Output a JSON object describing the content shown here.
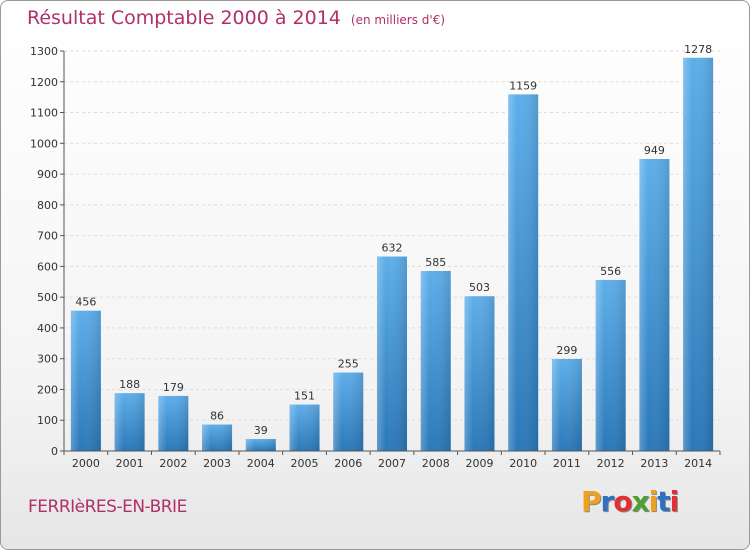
{
  "header": {
    "title": "Résultat Comptable 2000 à 2014",
    "subtitle": "(en milliers d'€)"
  },
  "footer": {
    "town": "FERRIèRES-EN-BRIE"
  },
  "logo": {
    "text": "Proxiti",
    "letters": [
      "P",
      "r",
      "o",
      "x",
      "i",
      "t",
      "i"
    ],
    "colors": [
      "#f0a020",
      "#3070c0",
      "#e03030",
      "#50a030",
      "#f0a020",
      "#3070c0",
      "#e03030"
    ]
  },
  "colors": {
    "bar_light": "#5aaae6",
    "bar_dark": "#2a78b8",
    "title": "#b0306a",
    "grid": "#dddddd",
    "axis": "#555555"
  },
  "chart_data": {
    "type": "bar",
    "title": "Résultat Comptable 2000 à 2014",
    "subtitle": "(en milliers d'€)",
    "categories": [
      "2000",
      "2001",
      "2002",
      "2003",
      "2004",
      "2005",
      "2006",
      "2007",
      "2008",
      "2009",
      "2010",
      "2011",
      "2012",
      "2013",
      "2014"
    ],
    "values": [
      456,
      188,
      179,
      86,
      39,
      151,
      255,
      632,
      585,
      503,
      1159,
      299,
      556,
      949,
      1278
    ],
    "ylim": [
      0,
      1300
    ],
    "yticks": [
      0,
      100,
      200,
      300,
      400,
      500,
      600,
      700,
      800,
      900,
      1000,
      1100,
      1200,
      1300
    ],
    "grid": true,
    "data_labels": true
  }
}
